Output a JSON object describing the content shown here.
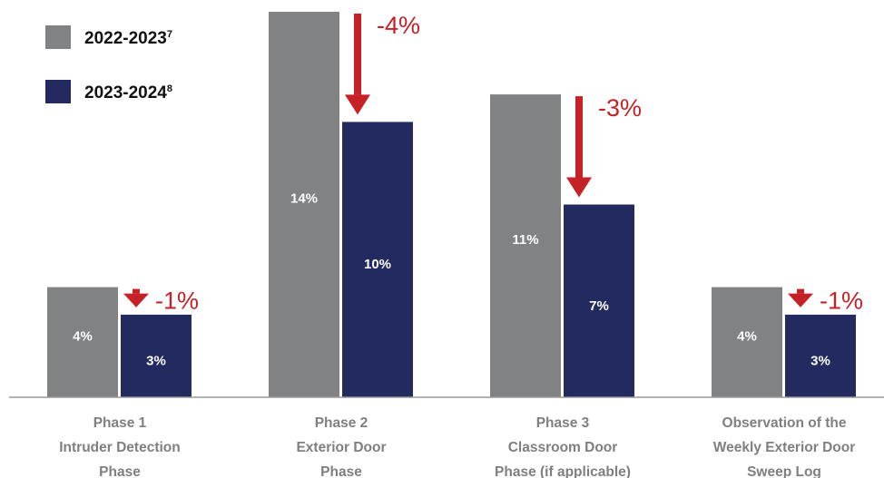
{
  "chart_data": {
    "type": "bar",
    "title": "",
    "xlabel": "",
    "ylabel": "",
    "categories": [
      [
        "Phase 1",
        "Intruder Detection",
        "Phase"
      ],
      [
        "Phase 2",
        "Exterior Door",
        "Phase"
      ],
      [
        "Phase 3",
        "Classroom Door",
        "Phase (if applicable)"
      ],
      [
        "Observation of the",
        "Weekly Exterior Door",
        "Sweep Log"
      ]
    ],
    "series": [
      {
        "name": "2022-2023",
        "footnote": "7",
        "color": "#808284",
        "values": [
          4,
          14,
          11,
          4
        ],
        "labels": [
          "4%",
          "14%",
          "11%",
          "4%"
        ]
      },
      {
        "name": "2023-2024",
        "footnote": "8",
        "color": "#222a60",
        "values": [
          3,
          10,
          7,
          3
        ],
        "labels": [
          "3%",
          "10%",
          "7%",
          "3%"
        ]
      }
    ],
    "changes": [
      "-1%",
      "-4%",
      "-3%",
      "-1%"
    ],
    "change_color": "#c62127",
    "ylim": [
      0,
      14
    ],
    "grid": false,
    "legend_position": "top-left"
  }
}
